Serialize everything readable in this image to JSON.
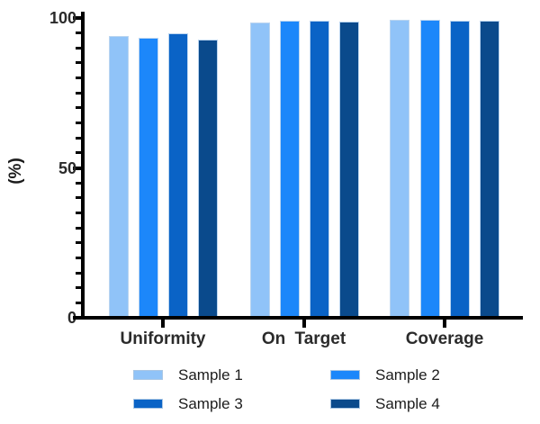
{
  "chart_data": {
    "type": "bar",
    "title": "",
    "categories": [
      "Uniformity",
      "On Target",
      "Coverage"
    ],
    "series": [
      {
        "name": "Sample 1",
        "color": "#90C3F8",
        "values": [
          94.0,
          98.6,
          99.3
        ]
      },
      {
        "name": "Sample 2",
        "color": "#1C87FA",
        "values": [
          93.3,
          99.1,
          99.3
        ]
      },
      {
        "name": "Sample 3",
        "color": "#0A63C6",
        "values": [
          94.8,
          99.1,
          99.0
        ]
      },
      {
        "name": "Sample 4",
        "color": "#0A4A8C",
        "values": [
          92.8,
          98.8,
          99.0
        ]
      }
    ],
    "xlabel": "",
    "ylabel": "(%)",
    "ylim": [
      0,
      100
    ],
    "yticks": [
      0,
      50,
      100
    ],
    "ytick_labels": [
      "0",
      "50",
      "100"
    ],
    "minor_tick_step": 5,
    "grid": false,
    "legend_position": "bottom"
  },
  "legend": {
    "entries": [
      {
        "label": "Sample 1",
        "color": "#90C3F8"
      },
      {
        "label": "Sample 2",
        "color": "#1C87FA"
      },
      {
        "label": "Sample 3",
        "color": "#0A63C6"
      },
      {
        "label": "Sample 4",
        "color": "#0A4A8C"
      }
    ]
  },
  "colors": {
    "axis": "#000000",
    "tick_label": "#2b2b2b",
    "legend_text": "#1c1c1c",
    "bar_border": "#BBD5F0",
    "background": "#ffffff"
  }
}
